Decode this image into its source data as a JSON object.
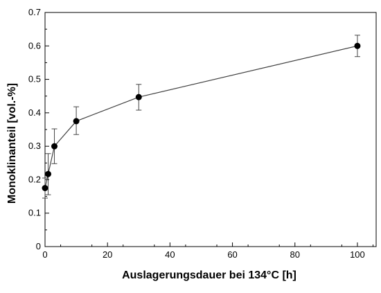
{
  "chart_data": {
    "type": "scatter",
    "title": "",
    "xlabel": "Auslagerungsdauer bei 134°C [h]",
    "ylabel": "Monoklinanteil [vol.-%]",
    "xlim": [
      0,
      106
    ],
    "ylim": [
      0,
      0.7
    ],
    "xticks": [
      0,
      20,
      40,
      60,
      80,
      100
    ],
    "xtick_labels": [
      "0",
      "20",
      "40",
      "60",
      "80",
      "100"
    ],
    "yticks": [
      0,
      0.1,
      0.2,
      0.3,
      0.4,
      0.5,
      0.6,
      0.7
    ],
    "ytick_labels": [
      "0",
      "0.1",
      "0.2",
      "0.3",
      "0.4",
      "0.5",
      "0.6",
      "0.7"
    ],
    "grid": false,
    "legend": "none",
    "connected_line": true,
    "error_bars": true,
    "series": [
      {
        "name": "",
        "color": "#000000",
        "line_color": "#404040",
        "points": [
          {
            "x": 0,
            "y": 0.175,
            "err_low": 0.145,
            "err_high": 0.205
          },
          {
            "x": 1,
            "y": 0.217,
            "err_low": 0.155,
            "err_high": 0.278
          },
          {
            "x": 3,
            "y": 0.3,
            "err_low": 0.248,
            "err_high": 0.352
          },
          {
            "x": 10,
            "y": 0.375,
            "err_low": 0.335,
            "err_high": 0.418
          },
          {
            "x": 30,
            "y": 0.447,
            "err_low": 0.408,
            "err_high": 0.485
          },
          {
            "x": 100,
            "y": 0.6,
            "err_low": 0.568,
            "err_high": 0.632
          }
        ]
      }
    ]
  }
}
